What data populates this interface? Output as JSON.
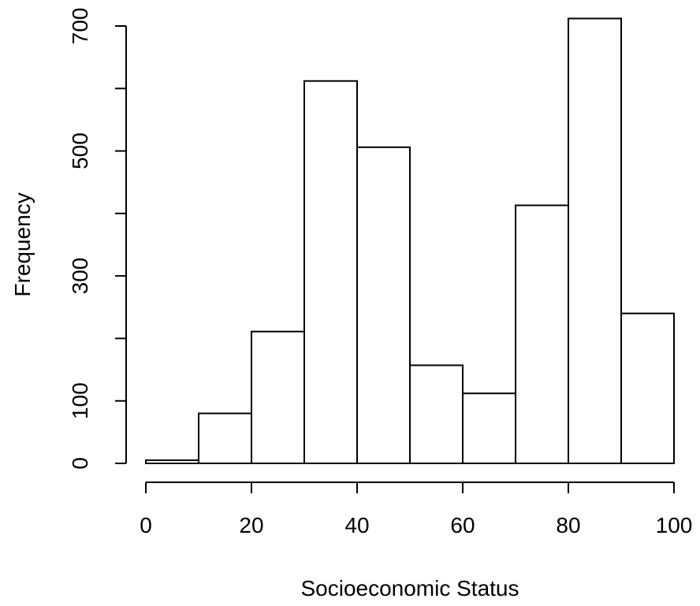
{
  "chart_data": {
    "type": "bar",
    "xlabel": "Socioeconomic Status",
    "ylabel": "Frequency",
    "bins": [
      {
        "x0": 0,
        "x1": 10,
        "count": 5
      },
      {
        "x0": 10,
        "x1": 20,
        "count": 80
      },
      {
        "x0": 20,
        "x1": 30,
        "count": 211
      },
      {
        "x0": 30,
        "x1": 40,
        "count": 612
      },
      {
        "x0": 40,
        "x1": 50,
        "count": 506
      },
      {
        "x0": 50,
        "x1": 60,
        "count": 157
      },
      {
        "x0": 60,
        "x1": 70,
        "count": 112
      },
      {
        "x0": 70,
        "x1": 80,
        "count": 413
      },
      {
        "x0": 80,
        "x1": 90,
        "count": 712
      },
      {
        "x0": 90,
        "x1": 100,
        "count": 240
      }
    ],
    "xlim": [
      0,
      100
    ],
    "ylim": [
      0,
      700
    ],
    "x_ticks": [
      0,
      20,
      40,
      60,
      80,
      100
    ],
    "x_tick_labels": [
      "0",
      "20",
      "40",
      "60",
      "80",
      "100"
    ],
    "y_ticks": [
      0,
      100,
      200,
      300,
      400,
      500,
      600,
      700
    ],
    "y_tick_labels": [
      "0",
      "100",
      "",
      "300",
      "",
      "500",
      "",
      "700"
    ],
    "grid": false,
    "colors": {
      "bar_fill": "#ffffff",
      "bar_stroke": "#000000"
    }
  }
}
